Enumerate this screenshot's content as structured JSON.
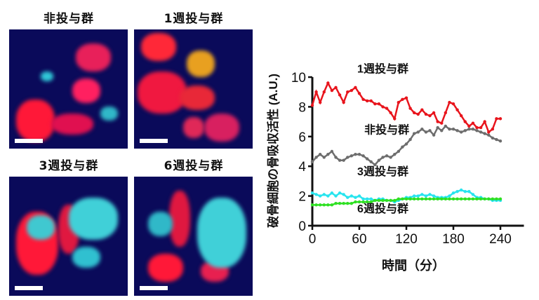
{
  "panels": [
    {
      "label": "非投与群"
    },
    {
      "label": "1週投与群"
    },
    {
      "label": "3週投与群"
    },
    {
      "label": "6週投与群"
    }
  ],
  "chart_data": {
    "type": "line",
    "title": "",
    "xlabel": "時間（分）",
    "ylabel": "破骨細胞の骨吸収活性 (A.U.)",
    "xticks": [
      0,
      60,
      120,
      180,
      240
    ],
    "yticks": [
      0,
      2,
      4,
      6,
      8,
      10
    ],
    "xlim": [
      0,
      270
    ],
    "ylim": [
      0,
      10
    ],
    "grid": false,
    "legend": "inline labels",
    "x": [
      0,
      5,
      10,
      15,
      20,
      25,
      30,
      35,
      40,
      45,
      50,
      55,
      60,
      65,
      70,
      75,
      80,
      85,
      90,
      95,
      100,
      105,
      110,
      115,
      120,
      125,
      130,
      135,
      140,
      145,
      150,
      155,
      160,
      165,
      170,
      175,
      180,
      185,
      190,
      195,
      200,
      205,
      210,
      215,
      220,
      225,
      230,
      235,
      240
    ],
    "series": [
      {
        "name": "1週投与群",
        "color": "#e8141c",
        "values": [
          8.1,
          9.0,
          8.3,
          9.0,
          9.6,
          9.1,
          9.3,
          8.8,
          8.3,
          9.0,
          9.1,
          9.3,
          8.9,
          8.5,
          8.4,
          8.4,
          8.2,
          8.2,
          8.0,
          7.9,
          7.6,
          7.2,
          8.3,
          8.5,
          8.6,
          7.9,
          7.6,
          7.5,
          7.8,
          7.5,
          7.4,
          7.6,
          7.0,
          6.9,
          7.6,
          8.3,
          8.2,
          7.8,
          7.4,
          7.0,
          6.7,
          6.9,
          6.6,
          6.6,
          7.0,
          6.3,
          6.5,
          7.2,
          7.2
        ]
      },
      {
        "name": "非投与群",
        "color": "#6d6d6d",
        "values": [
          4.3,
          4.6,
          4.8,
          4.6,
          4.8,
          5.0,
          4.6,
          4.4,
          4.4,
          4.6,
          4.7,
          4.8,
          4.8,
          4.7,
          4.5,
          4.3,
          4.1,
          4.4,
          4.6,
          4.7,
          4.6,
          4.8,
          5.0,
          5.3,
          5.5,
          5.8,
          6.2,
          6.3,
          6.5,
          6.3,
          6.4,
          6.1,
          6.6,
          6.4,
          6.7,
          6.5,
          6.5,
          6.4,
          6.3,
          6.4,
          6.5,
          6.5,
          6.4,
          6.3,
          6.2,
          6.1,
          5.9,
          5.8,
          5.7
        ]
      },
      {
        "name": "3週投与群",
        "color": "#27e4ee",
        "values": [
          2.2,
          2.1,
          2.0,
          2.1,
          2.0,
          2.2,
          2.0,
          2.2,
          2.1,
          1.9,
          2.0,
          1.9,
          2.0,
          1.8,
          1.8,
          1.8,
          1.7,
          1.8,
          1.8,
          1.7,
          1.7,
          1.6,
          1.7,
          1.8,
          1.9,
          1.9,
          2.0,
          2.0,
          2.1,
          2.0,
          2.1,
          2.0,
          1.9,
          1.9,
          1.9,
          2.0,
          2.2,
          2.3,
          2.4,
          2.3,
          2.3,
          2.1,
          1.9,
          1.9,
          1.8,
          1.8,
          1.7,
          1.7,
          1.7
        ]
      },
      {
        "name": "6週投与群",
        "color": "#2ee022",
        "values": [
          1.4,
          1.4,
          1.4,
          1.4,
          1.4,
          1.4,
          1.5,
          1.5,
          1.5,
          1.5,
          1.5,
          1.6,
          1.6,
          1.6,
          1.6,
          1.6,
          1.7,
          1.7,
          1.7,
          1.7,
          1.7,
          1.7,
          1.8,
          1.8,
          1.8,
          1.8,
          1.8,
          1.8,
          1.8,
          1.8,
          1.8,
          1.8,
          1.8,
          1.8,
          1.8,
          1.8,
          1.8,
          1.8,
          1.8,
          1.8,
          1.8,
          1.8,
          1.8,
          1.8,
          1.8,
          1.8,
          1.8,
          1.8,
          1.8
        ]
      }
    ],
    "annotations": [
      {
        "text": "1週投与群",
        "x": 90,
        "y": 10.3
      },
      {
        "text": "非投与群",
        "x": 95,
        "y": 6.2
      },
      {
        "text": "3週投与群",
        "x": 90,
        "y": 3.4
      },
      {
        "text": "6週投与群",
        "x": 90,
        "y": 0.9
      }
    ]
  }
}
